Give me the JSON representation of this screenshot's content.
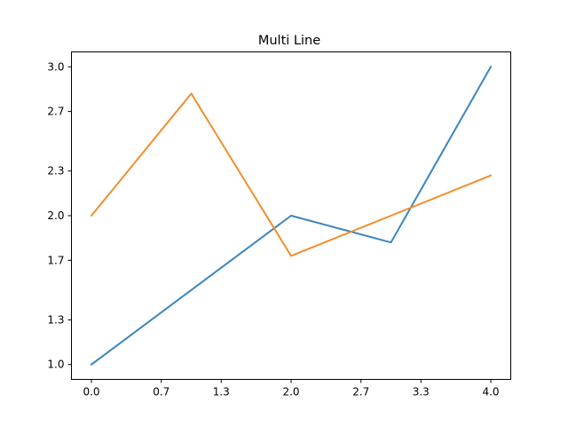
{
  "chart_data": {
    "type": "line",
    "title": "Multi Line",
    "xlabel": "",
    "ylabel": "",
    "xlim": [
      -0.2,
      4.2
    ],
    "ylim": [
      0.9,
      3.1
    ],
    "x_ticks": [
      0.0,
      0.7,
      1.3,
      2.0,
      2.7,
      3.3,
      4.0
    ],
    "x_tick_labels": [
      "0.0",
      "0.7",
      "1.3",
      "2.0",
      "2.7",
      "3.3",
      "4.0"
    ],
    "y_ticks": [
      1.0,
      1.3,
      1.7,
      2.0,
      2.3,
      2.7,
      3.0
    ],
    "y_tick_labels": [
      "1.0",
      "1.3",
      "1.7",
      "2.0",
      "2.3",
      "2.7",
      "3.0"
    ],
    "grid": false,
    "legend": "none",
    "x": [
      0,
      1,
      2,
      3,
      4
    ],
    "series": [
      {
        "values": [
          1.0,
          1.5,
          2.0,
          1.82,
          3.0
        ],
        "color": "#3b86be"
      },
      {
        "values": [
          2.0,
          2.82,
          1.73,
          2.0,
          2.27
        ],
        "color": "#f28e2b"
      }
    ]
  }
}
